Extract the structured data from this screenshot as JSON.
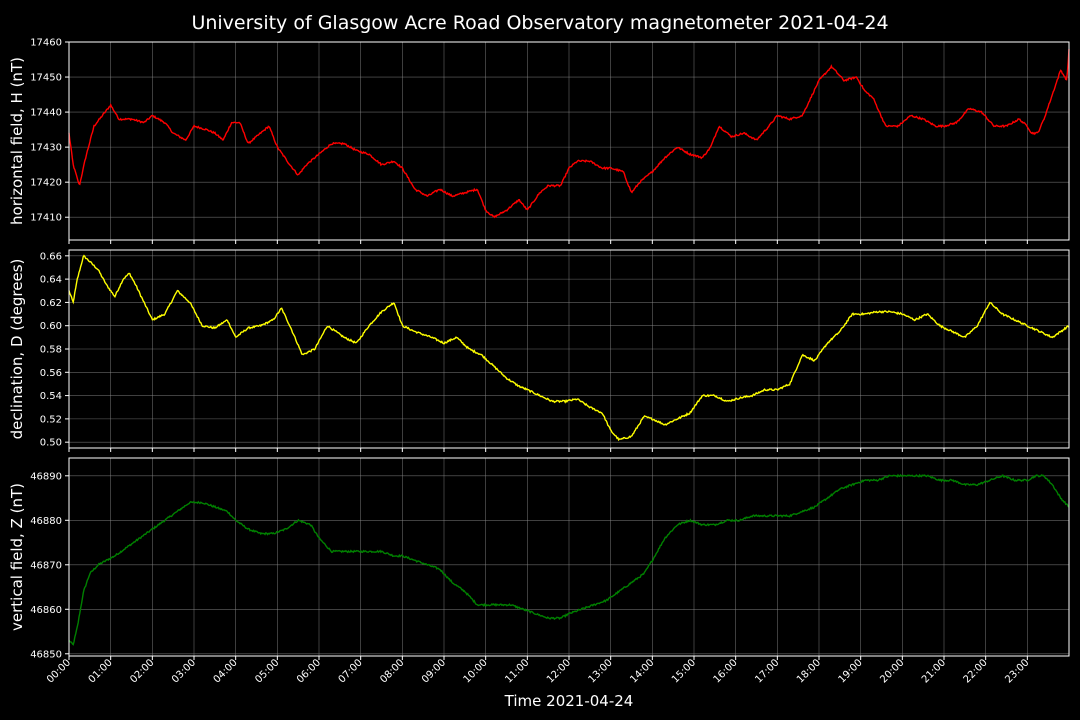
{
  "chart_data": {
    "type": "line",
    "title": "University of Glasgow Acre Road Observatory magnetometer 2021-04-24",
    "xlabel": "Time 2021-04-24",
    "x_unit": "hours",
    "xlim": [
      0,
      24
    ],
    "x_tick_labels": [
      "00:00",
      "01:00",
      "02:00",
      "03:00",
      "04:00",
      "05:00",
      "06:00",
      "07:00",
      "08:00",
      "09:00",
      "10:00",
      "11:00",
      "12:00",
      "13:00",
      "14:00",
      "15:00",
      "16:00",
      "17:00",
      "18:00",
      "19:00",
      "20:00",
      "21:00",
      "22:00",
      "23:00"
    ],
    "grid": true,
    "panels": [
      {
        "ylabel": "horizontal field, H (nT)",
        "color": "#ff0000",
        "ylim": [
          17403.5,
          17460
        ],
        "yticks": [
          17410,
          17420,
          17430,
          17440,
          17450,
          17460
        ],
        "x": [
          0,
          0.1,
          0.25,
          0.4,
          0.6,
          0.8,
          1.0,
          1.2,
          1.5,
          1.8,
          2.0,
          2.3,
          2.5,
          2.8,
          3.0,
          3.3,
          3.5,
          3.7,
          3.9,
          4.1,
          4.3,
          4.6,
          4.8,
          5.0,
          5.3,
          5.5,
          5.7,
          6.0,
          6.3,
          6.6,
          6.9,
          7.2,
          7.5,
          7.8,
          8.0,
          8.3,
          8.6,
          8.9,
          9.2,
          9.5,
          9.8,
          10.0,
          10.2,
          10.5,
          10.8,
          11.0,
          11.3,
          11.5,
          11.8,
          12.0,
          12.2,
          12.5,
          12.8,
          13.0,
          13.3,
          13.5,
          13.7,
          14.0,
          14.3,
          14.6,
          14.9,
          15.2,
          15.4,
          15.6,
          15.9,
          16.2,
          16.5,
          16.8,
          17.0,
          17.3,
          17.6,
          17.8,
          18.0,
          18.3,
          18.6,
          18.9,
          19.1,
          19.3,
          19.6,
          19.9,
          20.2,
          20.5,
          20.8,
          21.0,
          21.3,
          21.6,
          21.9,
          22.2,
          22.5,
          22.8,
          23.0,
          23.1,
          23.25,
          23.4,
          23.6,
          23.8,
          23.95,
          24.0
        ],
        "values": [
          17434,
          17425,
          17419,
          17427,
          17436,
          17439,
          17442,
          17438,
          17438,
          17437,
          17439,
          17437,
          17434,
          17432,
          17436,
          17435,
          17434,
          17432,
          17437,
          17437,
          17431,
          17434,
          17436,
          17430,
          17425,
          17422,
          17425,
          17428,
          17431,
          17431,
          17429,
          17428,
          17425,
          17426,
          17424,
          17418,
          17416,
          17418,
          17416,
          17417,
          17418,
          17412,
          17410,
          17412,
          17415,
          17412,
          17417,
          17419,
          17419,
          17424,
          17426,
          17426,
          17424,
          17424,
          17423,
          17417,
          17420,
          17423,
          17427,
          17430,
          17428,
          17427,
          17430,
          17436,
          17433,
          17434,
          17432,
          17436,
          17439,
          17438,
          17439,
          17444,
          17449,
          17453,
          17449,
          17450,
          17446,
          17444,
          17436,
          17436,
          17439,
          17438,
          17436,
          17436,
          17437,
          17441,
          17440,
          17436,
          17436,
          17438,
          17436,
          17434,
          17434,
          17438,
          17445,
          17452,
          17449,
          17458
        ]
      },
      {
        "ylabel": "declination, D (degrees)",
        "color": "#ffff00",
        "ylim": [
          0.495,
          0.665
        ],
        "yticks": [
          0.5,
          0.52,
          0.54,
          0.56,
          0.58,
          0.6,
          0.62,
          0.64,
          0.66
        ],
        "x": [
          0,
          0.1,
          0.2,
          0.35,
          0.5,
          0.7,
          0.9,
          1.1,
          1.3,
          1.45,
          1.6,
          1.8,
          2.0,
          2.3,
          2.6,
          2.9,
          3.2,
          3.5,
          3.8,
          4.0,
          4.3,
          4.6,
          4.9,
          5.1,
          5.3,
          5.6,
          5.9,
          6.2,
          6.6,
          6.9,
          7.2,
          7.5,
          7.8,
          8.0,
          8.3,
          8.7,
          9.0,
          9.3,
          9.6,
          9.9,
          10.2,
          10.5,
          10.8,
          11.0,
          11.3,
          11.6,
          11.9,
          12.2,
          12.5,
          12.8,
          13.0,
          13.2,
          13.5,
          13.8,
          14.0,
          14.3,
          14.6,
          14.9,
          15.2,
          15.5,
          15.8,
          16.1,
          16.4,
          16.7,
          17.0,
          17.3,
          17.6,
          17.9,
          18.2,
          18.5,
          18.8,
          19.1,
          19.4,
          19.7,
          20.0,
          20.3,
          20.6,
          20.9,
          21.2,
          21.5,
          21.8,
          22.1,
          22.4,
          22.7,
          23.0,
          23.3,
          23.6,
          23.8,
          24.0
        ],
        "values": [
          0.63,
          0.62,
          0.64,
          0.66,
          0.655,
          0.648,
          0.635,
          0.625,
          0.64,
          0.645,
          0.635,
          0.62,
          0.605,
          0.61,
          0.63,
          0.62,
          0.6,
          0.598,
          0.605,
          0.59,
          0.598,
          0.6,
          0.605,
          0.615,
          0.6,
          0.575,
          0.58,
          0.6,
          0.59,
          0.585,
          0.6,
          0.612,
          0.62,
          0.6,
          0.595,
          0.59,
          0.585,
          0.59,
          0.58,
          0.575,
          0.565,
          0.555,
          0.548,
          0.545,
          0.54,
          0.535,
          0.535,
          0.537,
          0.53,
          0.525,
          0.51,
          0.502,
          0.505,
          0.522,
          0.52,
          0.515,
          0.52,
          0.525,
          0.54,
          0.54,
          0.535,
          0.538,
          0.54,
          0.545,
          0.545,
          0.55,
          0.575,
          0.57,
          0.585,
          0.595,
          0.61,
          0.61,
          0.612,
          0.612,
          0.61,
          0.605,
          0.61,
          0.6,
          0.595,
          0.59,
          0.6,
          0.62,
          0.61,
          0.605,
          0.6,
          0.595,
          0.59,
          0.595,
          0.6
        ]
      },
      {
        "ylabel": "vertical field, Z (nT)",
        "color": "#008000",
        "ylim": [
          46849.5,
          46894
        ],
        "yticks": [
          46850,
          46860,
          46870,
          46880,
          46890
        ],
        "x": [
          0,
          0.1,
          0.2,
          0.35,
          0.5,
          0.7,
          0.9,
          1.1,
          1.4,
          1.7,
          2.0,
          2.3,
          2.6,
          2.9,
          3.2,
          3.5,
          3.8,
          4.0,
          4.3,
          4.6,
          4.9,
          5.2,
          5.5,
          5.8,
          6.0,
          6.3,
          6.6,
          6.9,
          7.2,
          7.5,
          7.8,
          8.0,
          8.3,
          8.6,
          8.9,
          9.2,
          9.5,
          9.8,
          10.0,
          10.3,
          10.6,
          10.9,
          11.2,
          11.5,
          11.8,
          12.0,
          12.3,
          12.6,
          12.9,
          13.2,
          13.5,
          13.8,
          14.0,
          14.3,
          14.6,
          14.9,
          15.2,
          15.5,
          15.8,
          16.1,
          16.4,
          16.7,
          17.0,
          17.3,
          17.6,
          17.9,
          18.2,
          18.5,
          18.8,
          19.1,
          19.4,
          19.7,
          20.0,
          20.3,
          20.6,
          20.9,
          21.2,
          21.5,
          21.8,
          22.1,
          22.4,
          22.7,
          23.0,
          23.2,
          23.4,
          23.6,
          23.8,
          24.0
        ],
        "values": [
          46853,
          46852,
          46856,
          46864,
          46868,
          46870,
          46871,
          46872,
          46874,
          46876,
          46878,
          46880,
          46882,
          46884,
          46884,
          46883,
          46882,
          46880,
          46878,
          46877,
          46877,
          46878,
          46880,
          46879,
          46876,
          46873,
          46873,
          46873,
          46873,
          46873,
          46872,
          46872,
          46871,
          46870,
          46869,
          46866,
          46864,
          46861,
          46861,
          46861,
          46861,
          46860,
          46859,
          46858,
          46858,
          46859,
          46860,
          46861,
          46862,
          46864,
          46866,
          46868,
          46871,
          46876,
          46879,
          46880,
          46879,
          46879,
          46880,
          46880,
          46881,
          46881,
          46881,
          46881,
          46882,
          46883,
          46885,
          46887,
          46888,
          46889,
          46889,
          46890,
          46890,
          46890,
          46890,
          46889,
          46889,
          46888,
          46888,
          46889,
          46890,
          46889,
          46889,
          46890,
          46890,
          46888,
          46885,
          46883
        ]
      }
    ]
  }
}
